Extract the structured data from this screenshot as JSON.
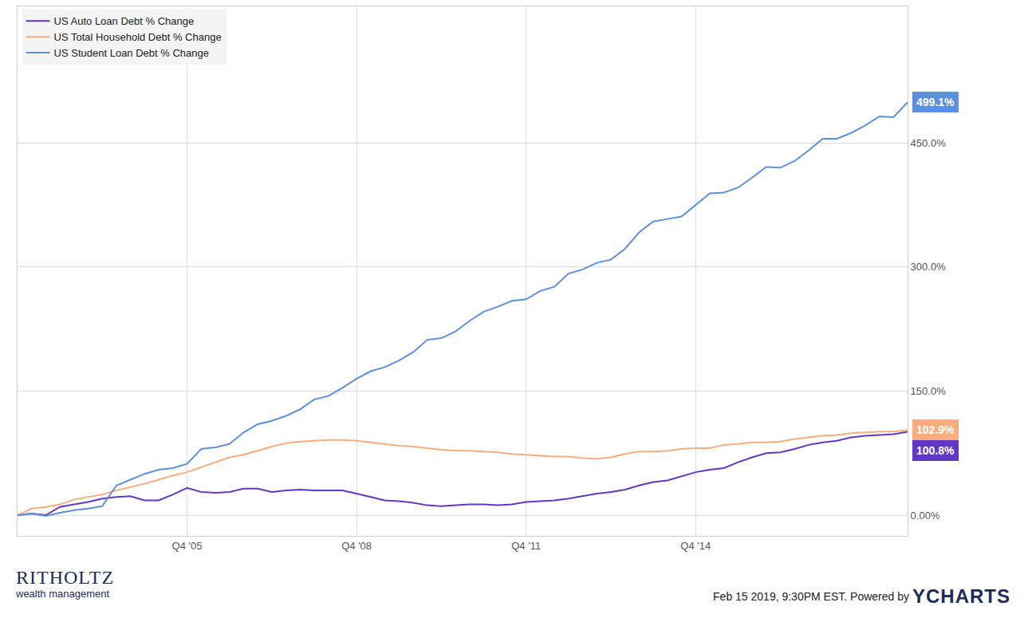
{
  "chart_data": {
    "type": "line",
    "categories": [
      null,
      null,
      null,
      null,
      null,
      null,
      null,
      null,
      null,
      null,
      null,
      null,
      "Q4 '05",
      null,
      null,
      null,
      null,
      null,
      null,
      null,
      null,
      null,
      null,
      null,
      "Q4 '08",
      null,
      null,
      null,
      null,
      null,
      null,
      null,
      null,
      null,
      null,
      null,
      "Q4 '11",
      null,
      null,
      null,
      null,
      null,
      null,
      null,
      null,
      null,
      null,
      null,
      "Q4 '14",
      null,
      null,
      null,
      null,
      null,
      null,
      null,
      null,
      null,
      null,
      null,
      null,
      null,
      null,
      null
    ],
    "series": [
      {
        "name": "US Auto Loan Debt % Change",
        "color": "#6237c8",
        "values": [
          0,
          2,
          0,
          10,
          13,
          16,
          20,
          22,
          23,
          18,
          18,
          25,
          33,
          28,
          27,
          28,
          32,
          32,
          28,
          30,
          31,
          30,
          30,
          30,
          26,
          22,
          18,
          17,
          15,
          12,
          11,
          12,
          13,
          13,
          12,
          13,
          16,
          17,
          18,
          20,
          23,
          26,
          28,
          31,
          36,
          40,
          42,
          47,
          52,
          55,
          57,
          64,
          70,
          75,
          76,
          80,
          85,
          88,
          90,
          94,
          96,
          97,
          98,
          100.8
        ]
      },
      {
        "name": "US Total Household Debt % Change",
        "color": "#f9ad7e",
        "values": [
          0,
          8,
          10,
          13,
          19,
          22,
          25,
          30,
          34,
          38,
          43,
          48,
          52,
          58,
          64,
          70,
          73,
          78,
          83,
          87,
          89,
          90,
          91,
          91,
          90,
          88,
          86,
          84,
          83,
          81,
          79,
          78,
          78,
          77,
          76,
          74,
          73,
          72,
          71,
          71,
          69,
          68,
          70,
          74,
          77,
          77,
          78,
          80,
          81,
          81,
          85,
          86,
          88,
          88,
          89,
          92,
          94,
          96,
          97,
          99,
          100,
          101,
          101,
          102.9
        ]
      },
      {
        "name": "US Student Loan Debt % Change",
        "color": "#5b8fdf",
        "values": [
          0,
          2,
          -1,
          3,
          6,
          8,
          11,
          36,
          43,
          50,
          55,
          57,
          62,
          80,
          82,
          86,
          100,
          110,
          114,
          120,
          128,
          140,
          144,
          154,
          165,
          174,
          179,
          187,
          197,
          212,
          214,
          222,
          235,
          246,
          252,
          259,
          261,
          271,
          276,
          292,
          297,
          305,
          309,
          322,
          342,
          355,
          358,
          361,
          375,
          389,
          390,
          396,
          408,
          421,
          420,
          428,
          441,
          455,
          455,
          462,
          471,
          482,
          481,
          499.1
        ]
      }
    ],
    "ylim": [
      -25,
      615
    ],
    "yticks": [
      {
        "value": 0,
        "label": "0.00%"
      },
      {
        "value": 150,
        "label": "150.0%"
      },
      {
        "value": 300,
        "label": "300.0%"
      },
      {
        "value": 450,
        "label": "450.0%"
      }
    ],
    "grid": true,
    "legend": "upper left",
    "annotations": [
      {
        "text": "499.1%",
        "series": "US Student Loan Debt % Change"
      },
      {
        "text": "102.9%",
        "series": "US Total Household Debt % Change"
      },
      {
        "text": "100.8%",
        "series": "US Auto Loan Debt % Change"
      }
    ],
    "footer": {
      "logo": "RITHOLTZ",
      "logo_sub": "wealth management",
      "note": "Feb 15 2019, 9:30PM EST. Powered by",
      "brand": "YCHARTS"
    }
  }
}
